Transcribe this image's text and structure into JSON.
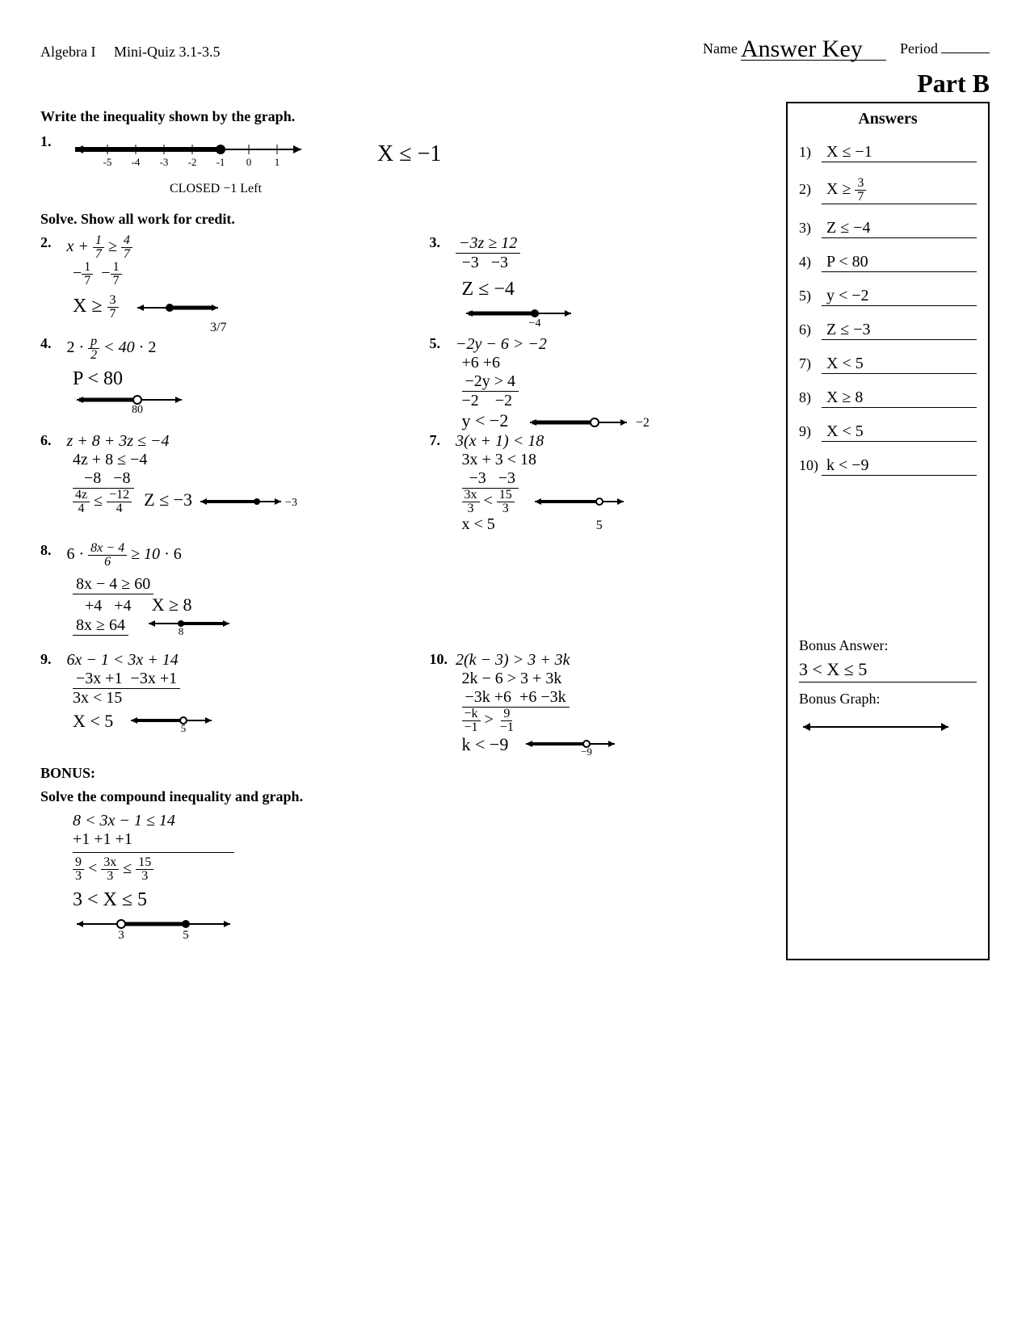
{
  "header": {
    "course": "Algebra I",
    "quiz": "Mini-Quiz 3.1-3.5",
    "name_label": "Name",
    "name_value": "Answer Key",
    "period_label": "Period"
  },
  "part_label": "Part B",
  "instructions": {
    "graph": "Write the inequality shown by the graph.",
    "solve": "Solve.  Show all work for credit.",
    "bonus": "Solve the compound inequality and graph."
  },
  "number_line": {
    "ticks": [
      "-5",
      "-4",
      "-3",
      "-2",
      "-1",
      "0",
      "1"
    ],
    "closed_at": -1,
    "direction": "left",
    "note": "CLOSED −1 Left"
  },
  "p1_answer": "X ≤ −1",
  "problems": {
    "p2": {
      "given": "x + 1/7 ≥ 4/7",
      "step": "−1/7  −1/7",
      "result": "X ≥ 3/7",
      "label_below": "3/7"
    },
    "p3": {
      "given": "−3z ≥ 12",
      "divisor": "−3   −3",
      "result": "Z ≤ −4",
      "graph_label": "−4"
    },
    "p4": {
      "given": "2 · p/2 < 40 · 2",
      "result": "P < 80",
      "graph_label": "80"
    },
    "p5": {
      "given": "−2y − 6 > −2",
      "step1": "+6  +6",
      "step2": "−2y > 4",
      "div": "−2     −2",
      "result": "y < −2",
      "graph_label": "−2"
    },
    "p6": {
      "given": "z + 8 + 3z ≤ −4",
      "step1": "4z + 8 ≤ −4",
      "step2": "−8   −8",
      "step3": "4z ≤ −12",
      "div": "4       4",
      "result": "Z ≤ −3",
      "graph_label": "−3"
    },
    "p7": {
      "given": "3(x + 1) < 18",
      "step1": "3x + 3 < 18",
      "step2": "−3   −3",
      "step3": "3x < 15",
      "div": "3      3",
      "result": "x < 5",
      "graph_label": "5"
    },
    "p8": {
      "given": "6 · (8x − 4)/6 ≥ 10 · 6",
      "step1": "8x − 4 ≥ 60",
      "step2": "+4   +4",
      "step3": "8x ≥ 64",
      "result": "X ≥ 8",
      "graph_label": "8"
    },
    "p9": {
      "given": "6x − 1 < 3x + 14",
      "step1": "−3x +1  −3x +1",
      "step2": "3x < 15",
      "result": "X < 5",
      "graph_label": "5"
    },
    "p10": {
      "given": "2(k − 3) > 3 + 3k",
      "step1": "2k − 6 > 3 + 3k",
      "step2": "−3k +6  +6 −3k",
      "step3": "−k > 9",
      "div": "−1    −1",
      "result": "k < −9",
      "graph_label": "−9"
    }
  },
  "bonus": {
    "label": "BONUS:",
    "given": "8 < 3x − 1 ≤ 14",
    "step1": "+1     +1   +1",
    "step2": "9 < 3x ≤ 15",
    "div": "3    3     3",
    "result": "3 < X ≤ 5",
    "left_label": "3",
    "right_label": "5"
  },
  "answers": {
    "title": "Answers",
    "items": [
      {
        "n": "1)",
        "v": "X ≤ −1"
      },
      {
        "n": "2)",
        "v": "X ≥ 3/7"
      },
      {
        "n": "3)",
        "v": "Z ≤ −4"
      },
      {
        "n": "4)",
        "v": "P < 80"
      },
      {
        "n": "5)",
        "v": "y < −2"
      },
      {
        "n": "6)",
        "v": "Z ≤ −3"
      },
      {
        "n": "7)",
        "v": "X < 5"
      },
      {
        "n": "8)",
        "v": "X ≥ 8"
      },
      {
        "n": "9)",
        "v": "X < 5"
      },
      {
        "n": "10)",
        "v": "k < −9"
      }
    ],
    "bonus_label": "Bonus Answer:",
    "bonus_value": "3 < X ≤ 5",
    "bonus_graph_label": "Bonus Graph:"
  },
  "colors": {
    "ink": "#000000",
    "bg": "#ffffff"
  }
}
